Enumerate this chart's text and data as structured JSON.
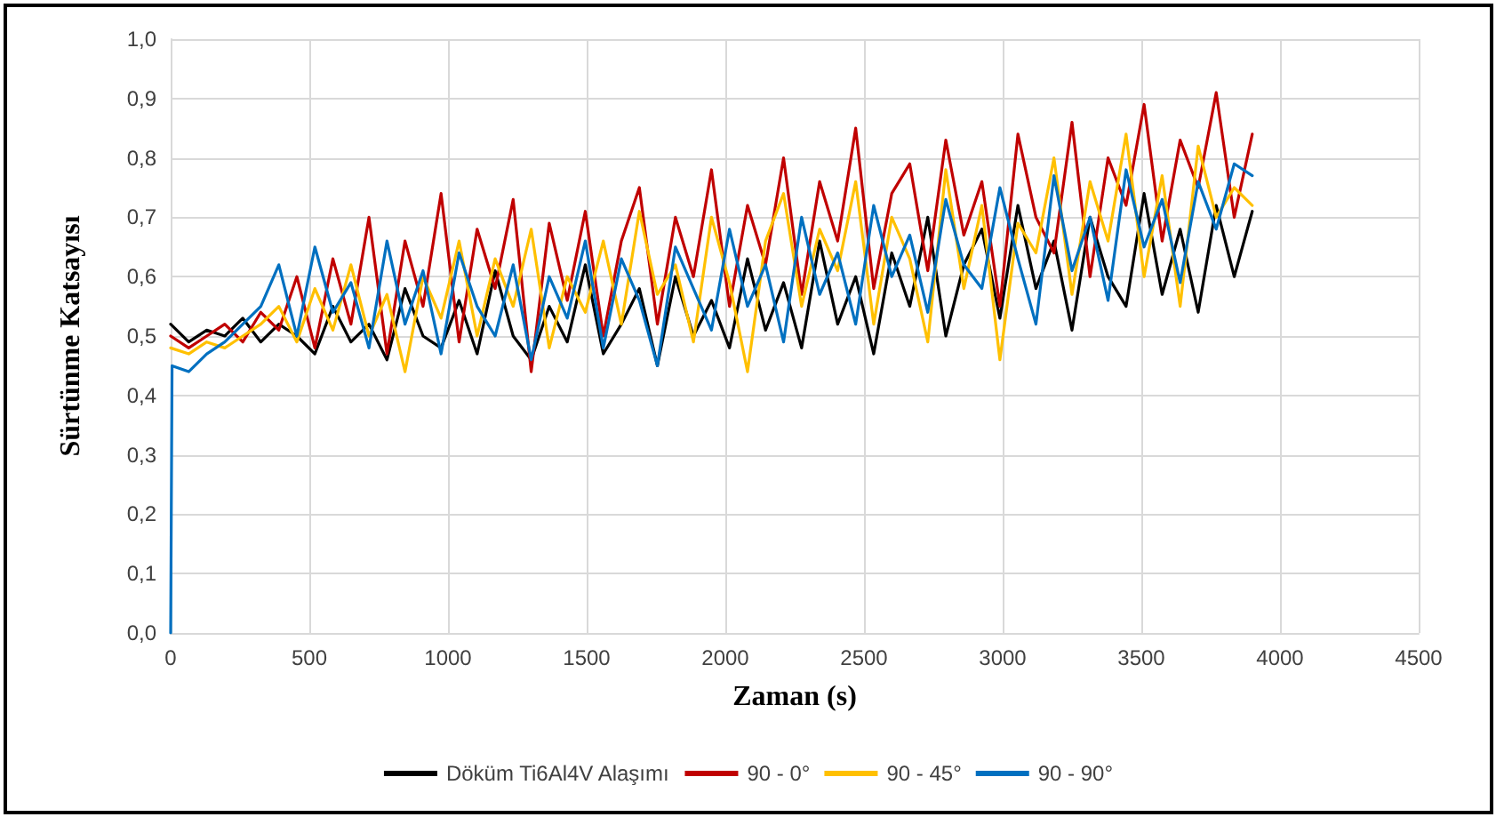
{
  "chart_data": {
    "type": "line",
    "xlabel": "Zaman (s)",
    "ylabel": "Sürtünme Katsayısı",
    "x": [
      0,
      65,
      130,
      195,
      260,
      325,
      390,
      455,
      520,
      585,
      650,
      715,
      780,
      845,
      910,
      975,
      1040,
      1105,
      1170,
      1235,
      1300,
      1365,
      1430,
      1495,
      1560,
      1625,
      1690,
      1755,
      1820,
      1885,
      1950,
      2015,
      2080,
      2145,
      2210,
      2275,
      2340,
      2405,
      2470,
      2535,
      2600,
      2665,
      2730,
      2795,
      2860,
      2925,
      2990,
      3055,
      3120,
      3185,
      3250,
      3315,
      3380,
      3445,
      3510,
      3575,
      3640,
      3705,
      3770,
      3835,
      3900
    ],
    "series": [
      {
        "name": "Döküm Ti6Al4V Alaşımı",
        "color": "#000000",
        "values": [
          0.52,
          0.49,
          0.51,
          0.5,
          0.53,
          0.49,
          0.52,
          0.5,
          0.47,
          0.55,
          0.49,
          0.52,
          0.46,
          0.58,
          0.5,
          0.48,
          0.56,
          0.47,
          0.61,
          0.5,
          0.46,
          0.55,
          0.49,
          0.62,
          0.47,
          0.52,
          0.58,
          0.45,
          0.6,
          0.5,
          0.56,
          0.48,
          0.63,
          0.51,
          0.59,
          0.48,
          0.66,
          0.52,
          0.6,
          0.47,
          0.64,
          0.55,
          0.7,
          0.5,
          0.62,
          0.68,
          0.53,
          0.72,
          0.58,
          0.66,
          0.51,
          0.7,
          0.6,
          0.55,
          0.74,
          0.57,
          0.68,
          0.54,
          0.72,
          0.6,
          0.71
        ]
      },
      {
        "name": "90 - 0°",
        "color": "#c00000",
        "values": [
          0.5,
          0.48,
          0.5,
          0.52,
          0.49,
          0.54,
          0.51,
          0.6,
          0.48,
          0.63,
          0.52,
          0.7,
          0.47,
          0.66,
          0.55,
          0.74,
          0.49,
          0.68,
          0.58,
          0.73,
          0.44,
          0.69,
          0.56,
          0.71,
          0.5,
          0.66,
          0.75,
          0.52,
          0.7,
          0.6,
          0.78,
          0.55,
          0.72,
          0.62,
          0.8,
          0.57,
          0.76,
          0.66,
          0.85,
          0.58,
          0.74,
          0.79,
          0.61,
          0.83,
          0.67,
          0.76,
          0.55,
          0.84,
          0.7,
          0.64,
          0.86,
          0.6,
          0.8,
          0.72,
          0.89,
          0.66,
          0.83,
          0.75,
          0.91,
          0.7,
          0.84
        ]
      },
      {
        "name": "90 - 45°",
        "color": "#ffc000",
        "values": [
          0.48,
          0.47,
          0.49,
          0.48,
          0.5,
          0.52,
          0.55,
          0.49,
          0.58,
          0.51,
          0.62,
          0.5,
          0.57,
          0.44,
          0.6,
          0.53,
          0.66,
          0.5,
          0.63,
          0.55,
          0.68,
          0.48,
          0.6,
          0.54,
          0.66,
          0.52,
          0.71,
          0.57,
          0.62,
          0.49,
          0.7,
          0.59,
          0.44,
          0.66,
          0.74,
          0.55,
          0.68,
          0.61,
          0.76,
          0.52,
          0.7,
          0.63,
          0.49,
          0.78,
          0.58,
          0.72,
          0.46,
          0.69,
          0.64,
          0.8,
          0.57,
          0.76,
          0.66,
          0.84,
          0.6,
          0.77,
          0.55,
          0.82,
          0.7,
          0.75,
          0.72
        ]
      },
      {
        "name": "90 - 90°",
        "color": "#0070c0",
        "x": [
          0,
          5,
          65,
          130,
          195,
          260,
          325,
          390,
          455,
          520,
          585,
          650,
          715,
          780,
          845,
          910,
          975,
          1040,
          1105,
          1170,
          1235,
          1300,
          1365,
          1430,
          1495,
          1560,
          1625,
          1690,
          1755,
          1820,
          1885,
          1950,
          2015,
          2080,
          2145,
          2210,
          2275,
          2340,
          2405,
          2470,
          2535,
          2600,
          2665,
          2730,
          2795,
          2860,
          2925,
          2990,
          3055,
          3120,
          3185,
          3250,
          3315,
          3380,
          3445,
          3510,
          3575,
          3640,
          3705,
          3770,
          3835,
          3900
        ],
        "values": [
          0.0,
          0.45,
          0.44,
          0.47,
          0.49,
          0.52,
          0.55,
          0.62,
          0.5,
          0.65,
          0.54,
          0.59,
          0.48,
          0.66,
          0.52,
          0.61,
          0.47,
          0.64,
          0.55,
          0.5,
          0.62,
          0.46,
          0.6,
          0.53,
          0.66,
          0.48,
          0.63,
          0.56,
          0.45,
          0.65,
          0.58,
          0.51,
          0.68,
          0.55,
          0.62,
          0.49,
          0.7,
          0.57,
          0.64,
          0.52,
          0.72,
          0.6,
          0.67,
          0.54,
          0.73,
          0.62,
          0.58,
          0.75,
          0.63,
          0.52,
          0.77,
          0.61,
          0.7,
          0.56,
          0.78,
          0.65,
          0.73,
          0.59,
          0.76,
          0.68,
          0.79,
          0.77
        ]
      }
    ],
    "xlim": [
      0,
      4500
    ],
    "xticks": [
      0,
      500,
      1000,
      1500,
      2000,
      2500,
      3000,
      3500,
      4000,
      4500
    ],
    "ylim": [
      0,
      1
    ],
    "yticks": [
      {
        "value": 0,
        "label": "0,0"
      },
      {
        "value": 0.1,
        "label": "0,1"
      },
      {
        "value": 0.2,
        "label": "0,2"
      },
      {
        "value": 0.3,
        "label": "0,3"
      },
      {
        "value": 0.4,
        "label": "0,4"
      },
      {
        "value": 0.5,
        "label": "0,5"
      },
      {
        "value": 0.6,
        "label": "0,6"
      },
      {
        "value": 0.7,
        "label": "0,7"
      },
      {
        "value": 0.8,
        "label": "0,8"
      },
      {
        "value": 0.9,
        "label": "0,9"
      },
      {
        "value": 1,
        "label": "1,0"
      }
    ],
    "grid": true,
    "legend": "bottom"
  }
}
